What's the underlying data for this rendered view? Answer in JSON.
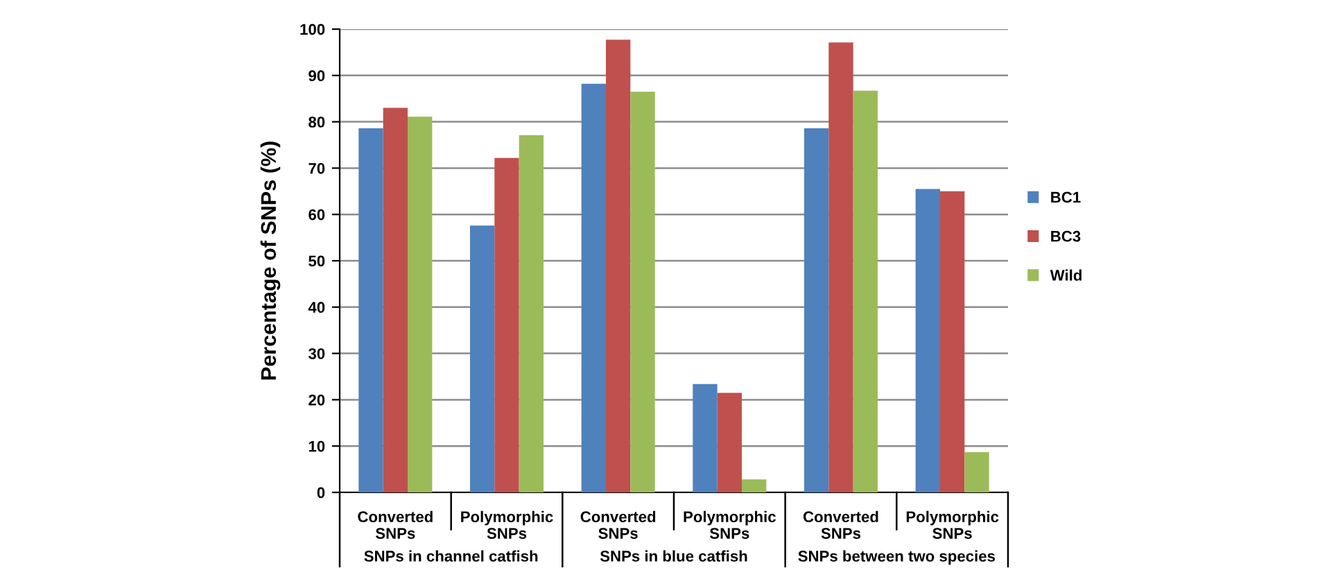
{
  "chart_data": {
    "type": "bar",
    "ylabel": "Percentage of SNPs (%)",
    "categories": [
      "Converted\nSNPs",
      "Polymorphic\nSNPs",
      "Converted\nSNPs",
      "Polymorphic\nSNPs",
      "Converted\nSNPs",
      "Polymorphic\nSNPs"
    ],
    "series": [
      {
        "name": "BC1",
        "color": "#4f81bd",
        "values": [
          78.6,
          57.6,
          88.2,
          23.4,
          78.6,
          65.5
        ]
      },
      {
        "name": "BC3",
        "color": "#c0504d",
        "values": [
          83.0,
          72.2,
          97.7,
          21.5,
          97.1,
          65.0
        ]
      },
      {
        "name": "Wild",
        "color": "#9bbb59",
        "values": [
          81.1,
          77.1,
          86.5,
          2.8,
          86.7,
          8.7
        ]
      }
    ],
    "annotations": [
      "SNPs in channel catfish",
      "SNPs in blue catfish",
      "SNPs between two species"
    ],
    "ylim": [
      0,
      100
    ],
    "yticks": [
      0,
      10,
      20,
      30,
      40,
      50,
      60,
      70,
      80,
      90,
      100
    ],
    "grid": "y",
    "legend": "right"
  }
}
